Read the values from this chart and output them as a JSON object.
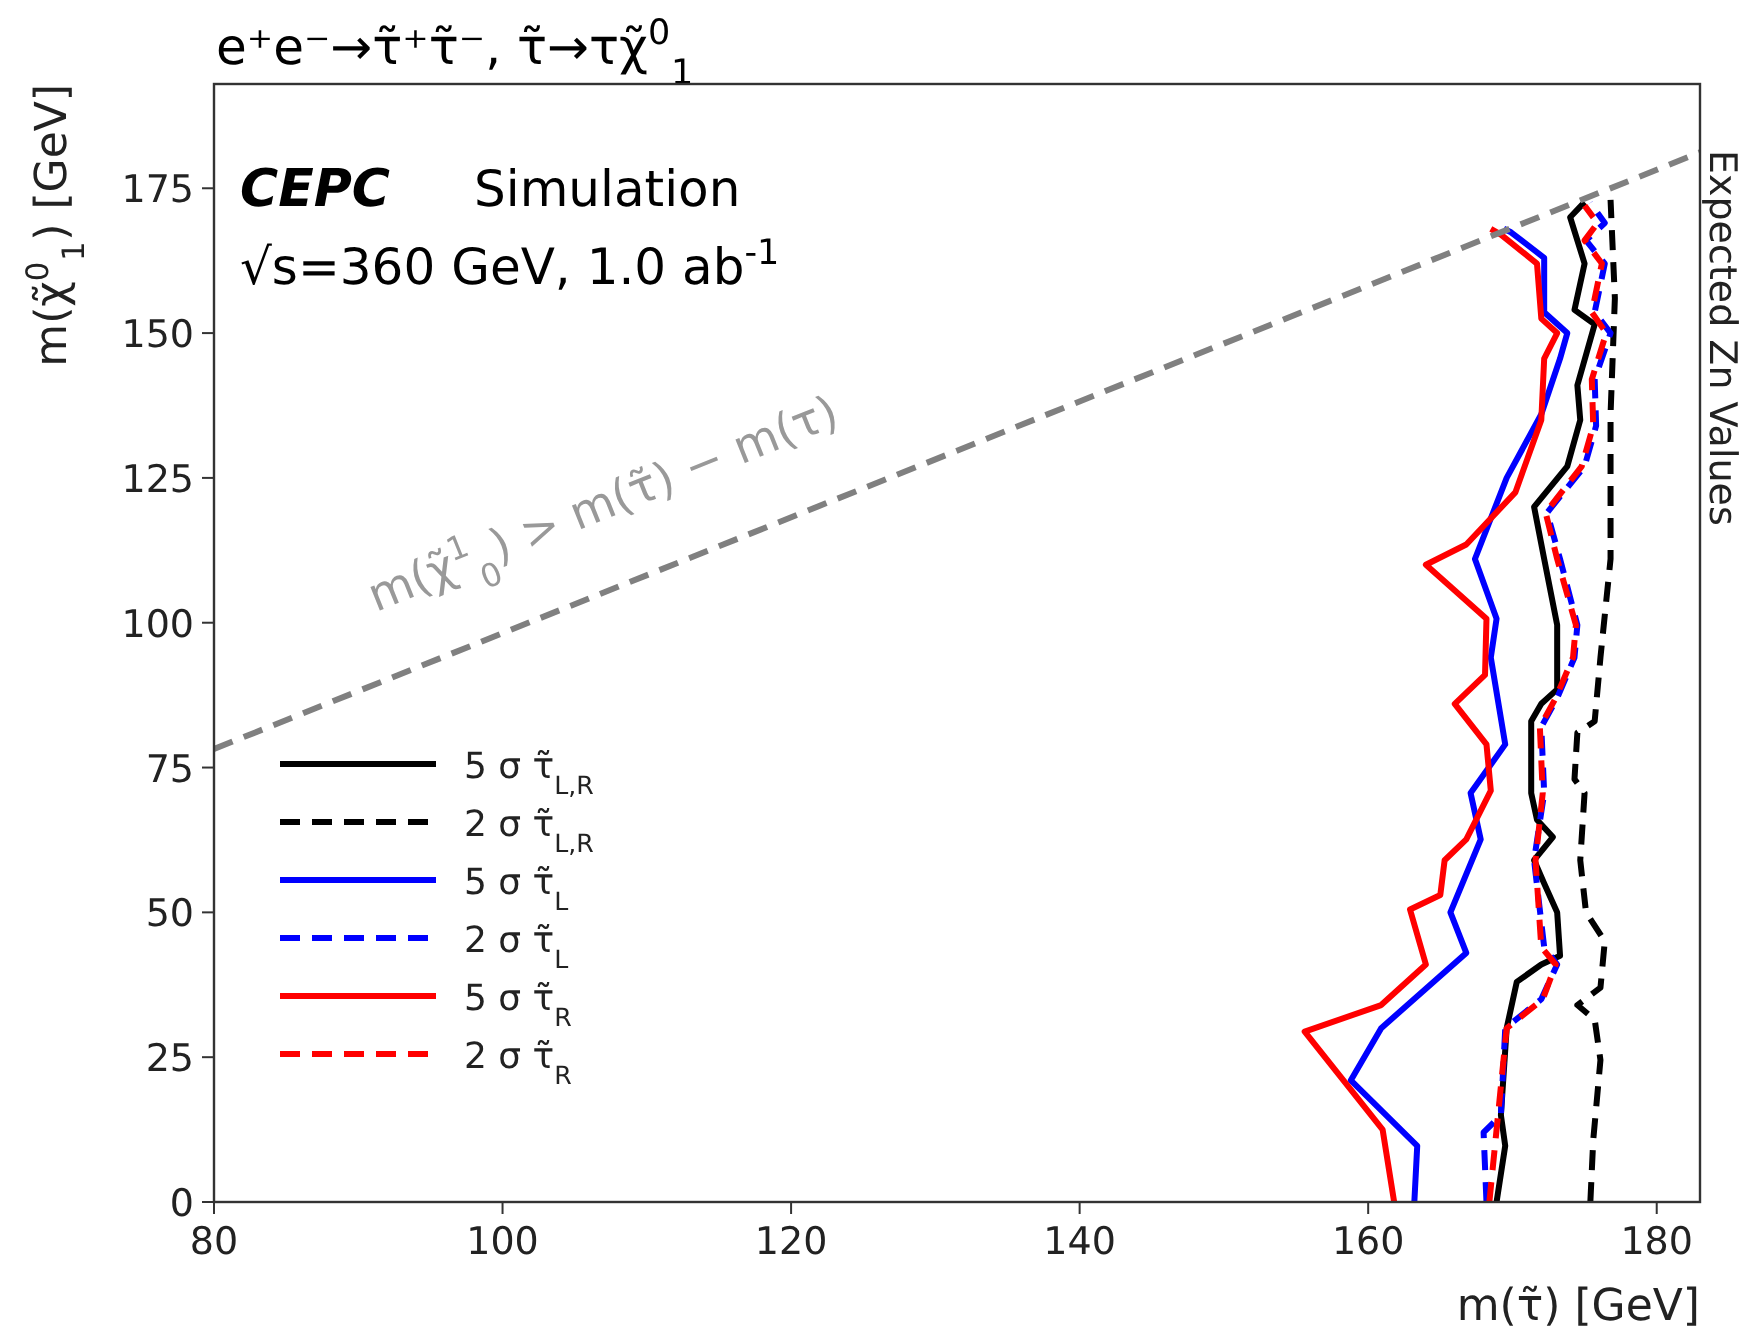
{
  "chart_data": {
    "type": "line",
    "title": "e⁺e⁻→τ̃⁺τ̃⁻, τ̃→τχ̃$^{0}$$_{1}$",
    "xlabel": "m(τ̃) [GeV]",
    "ylabel": "m(χ̃$^{0}$$_{1}$) [GeV]",
    "annotations": [
      "CEPC",
      "Simulation",
      "√s=360 GeV, 1.0 ab$^{-1}$",
      "Expected Zn Values",
      "m(χ̃$^{1}$$_{0}$) > m(τ̃) − m(τ)"
    ],
    "xlim": [
      80,
      183
    ],
    "ylim": [
      0,
      193
    ],
    "xticks": [
      80,
      100,
      120,
      140,
      160,
      180
    ],
    "yticks": [
      0,
      25,
      50,
      75,
      100,
      125,
      150,
      175
    ],
    "grid": false,
    "legend": "left",
    "marker": "none",
    "series": [
      {
        "name": "5 σ τ̃$_{L,R}$",
        "color": "#000000",
        "line_style": "solid",
        "x": [
          168.9,
          169.5,
          169.2,
          169.6,
          170.3,
          172.0,
          173.3,
          173.1,
          172.2,
          171.5,
          172.8,
          171.7,
          171.3,
          171.3,
          172.0,
          173.1,
          173.1,
          173.1,
          172.2,
          171.5,
          173.8,
          174.7,
          174.5,
          175.7,
          174.3,
          175.0,
          174.0,
          175.0
        ],
        "values": [
          0,
          9.7,
          15,
          30,
          38,
          41,
          42.5,
          50,
          55,
          59,
          63,
          66,
          70.6,
          83,
          86,
          88.5,
          94,
          99.6,
          111,
          120,
          127,
          135,
          141,
          151.5,
          154,
          162,
          170,
          172.6
        ]
      },
      {
        "name": "2 σ τ̃$_{L,R}$",
        "color": "#000000",
        "line_style": "dashed",
        "x": [
          175.4,
          175.6,
          176.1,
          175.7,
          174.5,
          176.1,
          176.4,
          175.1,
          174.7,
          175.0,
          174.3,
          174.5,
          175.7,
          176.1,
          176.8,
          176.8,
          176.8,
          177.1,
          176.8
        ],
        "values": [
          0,
          10.7,
          24.5,
          31.5,
          34,
          37,
          45,
          50,
          59,
          70.6,
          73,
          81,
          83,
          94,
          111,
          125,
          136,
          156,
          173
        ]
      },
      {
        "name": "5 σ τ̃$_{L}$",
        "color": "#0000ff",
        "line_style": "solid",
        "x": [
          163.2,
          163.4,
          158.8,
          160.9,
          166.8,
          165.7,
          167.8,
          167.1,
          169.5,
          168.5,
          168.9,
          167.4,
          169.6,
          172.0,
          173.3,
          173.8,
          172.2,
          172.2,
          169.9,
          169.4
        ],
        "values": [
          0,
          9.7,
          21,
          30,
          43,
          50,
          62.6,
          70.6,
          79,
          94,
          100.7,
          111,
          125,
          136,
          145.6,
          150,
          153.6,
          163,
          167.4,
          168
        ]
      },
      {
        "name": "2 σ τ̃$_{L}$",
        "color": "#0000ff",
        "line_style": "dashed",
        "x": [
          168.2,
          168.0,
          169.2,
          169.5,
          172.0,
          173.1,
          172.2,
          171.5,
          172.2,
          172.0,
          173.1,
          174.3,
          174.5,
          173.3,
          172.4,
          175.0,
          175.8,
          175.7,
          176.8,
          175.7,
          176.4,
          175.1,
          176.4,
          175.4
        ],
        "values": [
          0,
          12,
          15,
          30,
          35,
          41,
          44,
          59,
          70.6,
          82,
          87,
          94,
          99.6,
          111,
          119,
          127,
          134,
          142,
          150,
          153.6,
          162,
          166,
          169,
          172.5
        ]
      },
      {
        "name": "5 σ τ̃$_{R}$",
        "color": "#ff0000",
        "line_style": "solid",
        "x": [
          161.8,
          161.0,
          155.6,
          160.9,
          164.0,
          162.9,
          165.0,
          165.3,
          166.8,
          168.5,
          168.2,
          166.0,
          168.1,
          168.2,
          164.0,
          166.8,
          170.2,
          172.0,
          172.2,
          173.1,
          172.0,
          171.7,
          169.2,
          168.5
        ],
        "values": [
          0,
          12.5,
          29.4,
          34,
          41,
          50.5,
          53,
          59,
          62.6,
          71,
          79,
          86,
          91,
          100.7,
          110,
          113.5,
          122.5,
          135,
          145.6,
          150,
          152.5,
          162,
          167,
          168
        ]
      },
      {
        "name": "2 σ τ̃$_{R}$",
        "color": "#ff0000",
        "line_style": "dashed",
        "x": [
          168.4,
          169.0,
          169.6,
          172.1,
          173.0,
          172.0,
          171.6,
          172.1,
          171.9,
          173.0,
          174.2,
          174.4,
          173.1,
          172.3,
          174.8,
          175.6,
          175.5,
          176.5,
          175.5,
          176.2,
          175.0,
          175.9,
          175.0
        ],
        "values": [
          0,
          15,
          30,
          35,
          41,
          44,
          59,
          70.6,
          82,
          87,
          94,
          99.6,
          111,
          119,
          127,
          134,
          142,
          150,
          153.6,
          162,
          166,
          169,
          172
        ]
      },
      {
        "color": "#808080",
        "line_style": "dashed",
        "x": [
          80,
          183
        ],
        "values": [
          78.2,
          181.2
        ]
      }
    ]
  }
}
